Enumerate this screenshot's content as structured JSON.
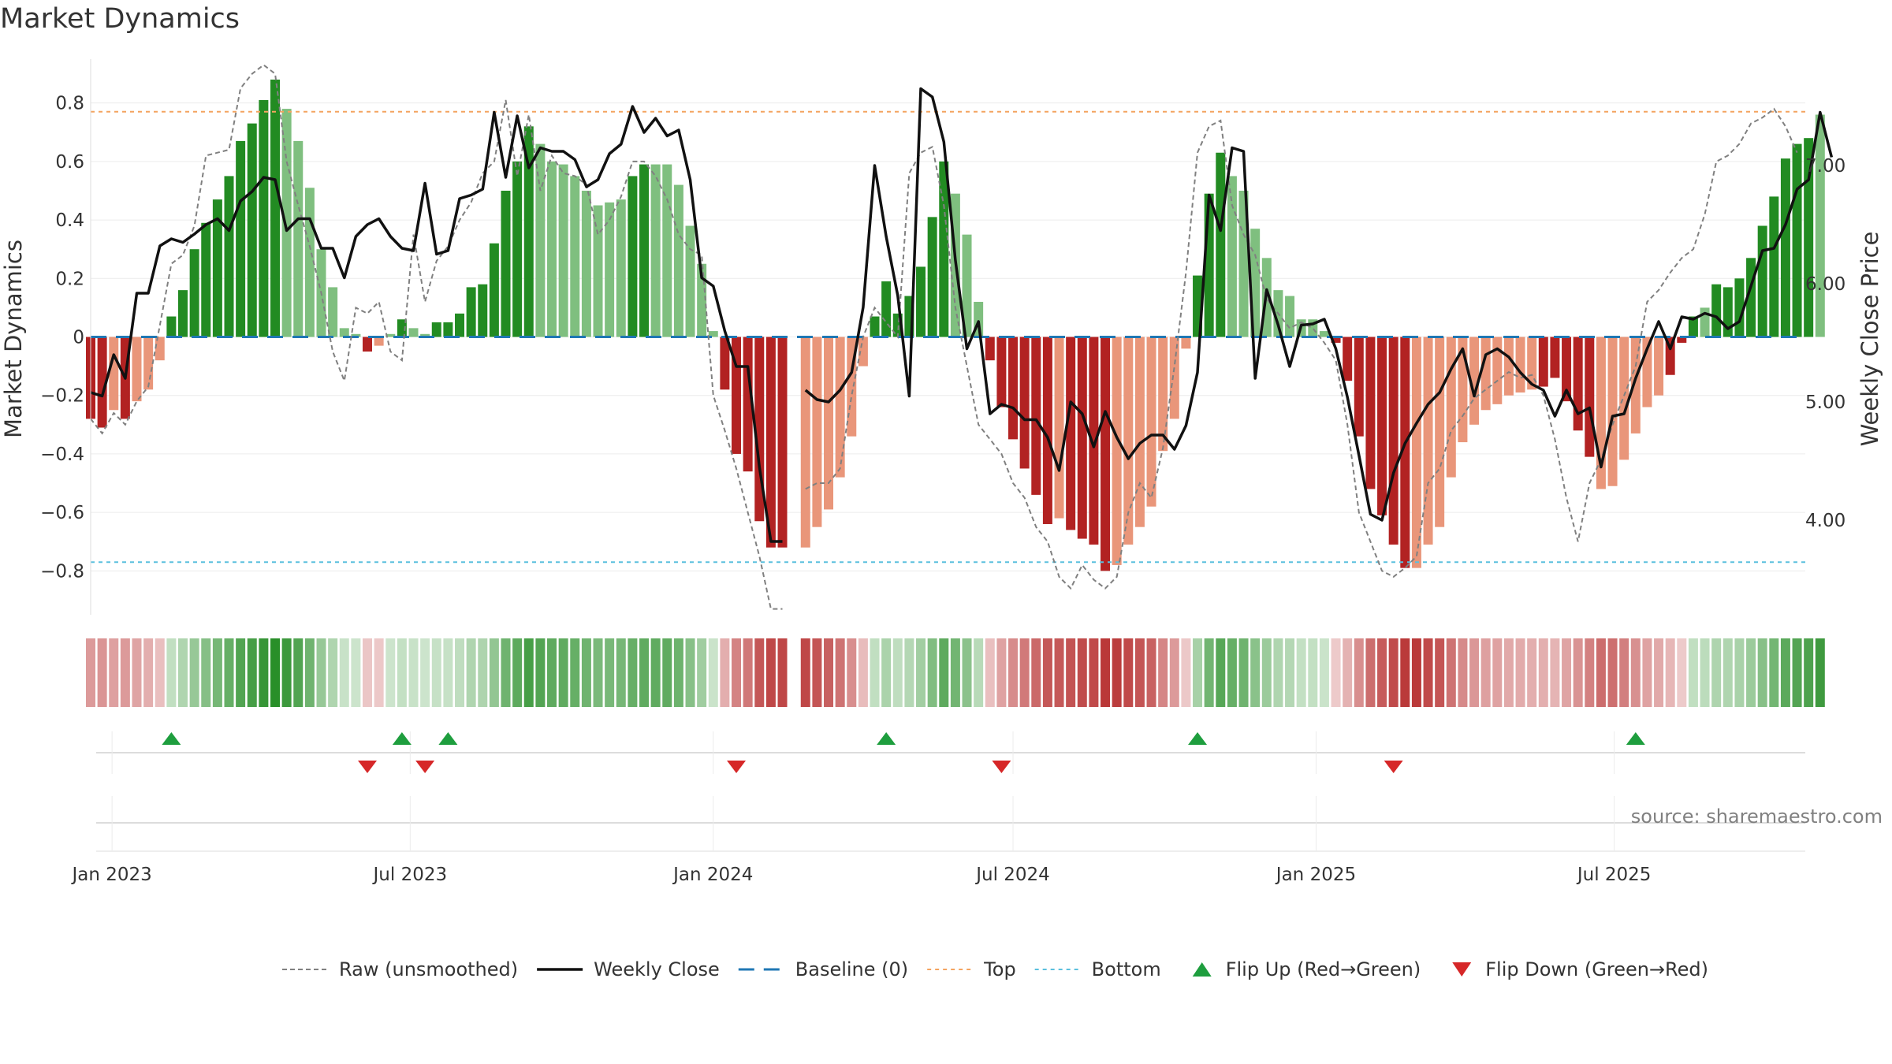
{
  "title": "Market Dynamics",
  "source": "source: sharemaestro.com",
  "colors": {
    "bar_strong_green": "#228B22",
    "bar_light_green": "#7FBF7F",
    "bar_strong_red": "#B22222",
    "bar_light_red": "#E9967A",
    "raw_line": "#808080",
    "close_line": "#111111",
    "baseline": "#1F77B4",
    "top": "#F4A460",
    "bottom": "#5BC0DE",
    "flip_up": "#1E9E3E",
    "flip_down": "#D62728"
  },
  "chart_data": {
    "type": "bar+line",
    "title": "Market Dynamics",
    "ylabel_left": "Market Dynamics",
    "ylabel_right": "Weekly Close Price",
    "ylim_left": [
      -0.95,
      0.95
    ],
    "ylim_right": [
      3.2,
      7.9
    ],
    "yticks_left": [
      0.8,
      0.6,
      0.4,
      0.2,
      0,
      -0.2,
      -0.4,
      -0.6,
      -0.8
    ],
    "yticks_left_labels": [
      "0.8",
      "0.6",
      "0.4",
      "0.2",
      "0",
      "−0.2",
      "−0.4",
      "−0.6",
      "−0.8"
    ],
    "yticks_right": [
      7.0,
      6.0,
      5.0,
      4.0
    ],
    "yticks_right_labels": [
      "7.00",
      "6.00",
      "5.00",
      "4.00"
    ],
    "x_range": [
      "2022-12-19",
      "2025-10-25"
    ],
    "xticks": [
      "2023-01-01",
      "2023-07-01",
      "2024-01-01",
      "2024-07-01",
      "2025-01-01",
      "2025-07-01"
    ],
    "xtick_labels": [
      "Jan 2023",
      "Jul 2023",
      "Jan 2024",
      "Jul 2024",
      "Jan 2025",
      "Jul 2025"
    ],
    "start_date": "2022-12-19",
    "week_days": 7,
    "gap_week_index": 61,
    "top_level": 0.77,
    "bottom_level": -0.77,
    "baseline_level": 0,
    "bar_values": [
      -0.28,
      -0.31,
      -0.25,
      -0.28,
      -0.22,
      -0.18,
      -0.08,
      0.07,
      0.16,
      0.3,
      0.39,
      0.47,
      0.55,
      0.67,
      0.73,
      0.81,
      0.88,
      0.78,
      0.67,
      0.51,
      0.3,
      0.17,
      0.03,
      0.01,
      -0.05,
      -0.03,
      0.01,
      0.06,
      0.03,
      0.01,
      0.05,
      0.05,
      0.08,
      0.17,
      0.18,
      0.32,
      0.5,
      0.6,
      0.72,
      0.66,
      0.6,
      0.59,
      0.55,
      0.5,
      0.45,
      0.46,
      0.47,
      0.55,
      0.59,
      0.59,
      0.59,
      0.52,
      0.38,
      0.25,
      0.02,
      -0.18,
      -0.4,
      -0.46,
      -0.63,
      -0.72,
      -0.72,
      null,
      -0.72,
      -0.65,
      -0.59,
      -0.48,
      -0.34,
      -0.1,
      0.07,
      0.19,
      0.08,
      0.14,
      0.24,
      0.41,
      0.6,
      0.49,
      0.35,
      0.12,
      -0.08,
      -0.24,
      -0.35,
      -0.45,
      -0.54,
      -0.64,
      -0.62,
      -0.66,
      -0.69,
      -0.71,
      -0.8,
      -0.78,
      -0.71,
      -0.65,
      -0.58,
      -0.39,
      -0.28,
      -0.04,
      0.21,
      0.49,
      0.63,
      0.55,
      0.5,
      0.37,
      0.27,
      0.16,
      0.14,
      0.06,
      0.06,
      0.02,
      -0.02,
      -0.15,
      -0.34,
      -0.52,
      -0.61,
      -0.71,
      -0.79,
      -0.79,
      -0.71,
      -0.65,
      -0.48,
      -0.36,
      -0.3,
      -0.25,
      -0.23,
      -0.2,
      -0.19,
      -0.18,
      -0.17,
      -0.14,
      -0.22,
      -0.32,
      -0.41,
      -0.52,
      -0.51,
      -0.42,
      -0.33,
      -0.24,
      -0.2,
      -0.13,
      -0.02,
      0.07,
      0.1,
      0.18,
      0.17,
      0.2,
      0.27,
      0.38,
      0.48,
      0.61,
      0.66,
      0.68,
      0.76
    ],
    "bar_strength": [
      "s",
      "s",
      "l",
      "s",
      "l",
      "l",
      "l",
      "s",
      "s",
      "s",
      "s",
      "s",
      "s",
      "s",
      "s",
      "s",
      "s",
      "l",
      "l",
      "l",
      "l",
      "l",
      "l",
      "l",
      "s",
      "l",
      "l",
      "s",
      "l",
      "l",
      "s",
      "s",
      "s",
      "s",
      "s",
      "s",
      "s",
      "s",
      "s",
      "l",
      "l",
      "l",
      "l",
      "l",
      "l",
      "l",
      "l",
      "s",
      "s",
      "l",
      "l",
      "l",
      "l",
      "l",
      "l",
      "s",
      "s",
      "s",
      "s",
      "s",
      "s",
      null,
      "l",
      "l",
      "l",
      "l",
      "l",
      "l",
      "s",
      "s",
      "s",
      "s",
      "s",
      "s",
      "s",
      "l",
      "l",
      "l",
      "s",
      "s",
      "s",
      "s",
      "s",
      "s",
      "l",
      "s",
      "s",
      "s",
      "s",
      "l",
      "l",
      "l",
      "l",
      "l",
      "l",
      "l",
      "s",
      "s",
      "s",
      "l",
      "l",
      "l",
      "l",
      "l",
      "l",
      "l",
      "l",
      "l",
      "s",
      "s",
      "s",
      "s",
      "s",
      "s",
      "s",
      "l",
      "l",
      "l",
      "l",
      "l",
      "l",
      "l",
      "l",
      "l",
      "l",
      "l",
      "s",
      "s",
      "s",
      "s",
      "s",
      "l",
      "l",
      "l",
      "l",
      "l",
      "l",
      "s",
      "s",
      "s",
      "l",
      "s",
      "s",
      "s",
      "s",
      "s",
      "s",
      "s",
      "s",
      "s"
    ],
    "raw_values": [
      -0.28,
      -0.33,
      -0.26,
      -0.3,
      -0.22,
      -0.17,
      0.04,
      0.25,
      0.28,
      0.38,
      0.62,
      0.63,
      0.64,
      0.85,
      0.9,
      0.93,
      0.9,
      0.6,
      0.45,
      0.31,
      0.15,
      -0.05,
      -0.15,
      0.1,
      0.08,
      0.12,
      -0.05,
      -0.08,
      0.35,
      0.12,
      0.26,
      0.31,
      0.4,
      0.46,
      0.56,
      0.6,
      0.81,
      0.55,
      0.76,
      0.5,
      0.62,
      0.56,
      0.55,
      0.52,
      0.35,
      0.4,
      0.48,
      0.6,
      0.6,
      0.55,
      0.47,
      0.35,
      0.3,
      0.28,
      -0.2,
      -0.32,
      -0.45,
      -0.6,
      -0.75,
      -0.93,
      -0.93,
      null,
      -0.52,
      -0.5,
      -0.5,
      -0.45,
      -0.2,
      0.0,
      0.1,
      0.05,
      0.0,
      0.56,
      0.63,
      0.65,
      0.45,
      0.1,
      -0.1,
      -0.3,
      -0.35,
      -0.4,
      -0.5,
      -0.55,
      -0.65,
      -0.7,
      -0.82,
      -0.86,
      -0.78,
      -0.83,
      -0.86,
      -0.82,
      -0.6,
      -0.5,
      -0.55,
      -0.38,
      -0.1,
      0.22,
      0.63,
      0.72,
      0.74,
      0.45,
      0.35,
      0.28,
      0.13,
      0.08,
      0.03,
      0.05,
      0.03,
      -0.02,
      -0.08,
      -0.3,
      -0.6,
      -0.7,
      -0.8,
      -0.82,
      -0.79,
      -0.75,
      -0.5,
      -0.45,
      -0.32,
      -0.27,
      -0.21,
      -0.18,
      -0.15,
      -0.12,
      -0.14,
      -0.13,
      -0.2,
      -0.35,
      -0.55,
      -0.7,
      -0.5,
      -0.42,
      -0.3,
      -0.2,
      -0.1,
      0.12,
      0.16,
      0.22,
      0.27,
      0.3,
      0.42,
      0.6,
      0.62,
      0.66,
      0.73,
      0.75,
      0.78,
      0.72,
      0.63
    ],
    "close_values": [
      5.08,
      5.05,
      5.4,
      5.2,
      5.92,
      5.92,
      6.32,
      6.38,
      6.35,
      6.42,
      6.5,
      6.55,
      6.45,
      6.7,
      6.78,
      6.9,
      6.88,
      6.45,
      6.55,
      6.55,
      6.3,
      6.3,
      6.05,
      6.4,
      6.5,
      6.55,
      6.4,
      6.3,
      6.28,
      6.85,
      6.25,
      6.28,
      6.72,
      6.75,
      6.8,
      7.45,
      6.9,
      7.42,
      6.98,
      7.15,
      7.12,
      7.12,
      7.05,
      6.82,
      6.88,
      7.1,
      7.18,
      7.5,
      7.28,
      7.4,
      7.25,
      7.3,
      6.88,
      6.05,
      5.98,
      5.6,
      5.3,
      5.3,
      4.45,
      3.82,
      3.82,
      null,
      5.1,
      5.02,
      5.0,
      5.1,
      5.25,
      5.8,
      7.0,
      6.4,
      5.9,
      5.05,
      7.65,
      7.58,
      7.2,
      6.2,
      5.45,
      5.68,
      4.9,
      4.98,
      4.95,
      4.85,
      4.85,
      4.7,
      4.42,
      5.0,
      4.9,
      4.62,
      4.92,
      4.7,
      4.52,
      4.65,
      4.72,
      4.72,
      4.6,
      4.8,
      5.25,
      6.75,
      6.45,
      7.15,
      7.12,
      5.2,
      5.95,
      5.65,
      5.3,
      5.65,
      5.66,
      5.7,
      5.45,
      5.04,
      4.55,
      4.05,
      4.0,
      4.4,
      4.65,
      4.82,
      4.98,
      5.08,
      5.28,
      5.45,
      5.05,
      5.4,
      5.45,
      5.38,
      5.25,
      5.15,
      5.1,
      4.88,
      5.1,
      4.9,
      4.95,
      4.45,
      4.88,
      4.9,
      5.2,
      5.45,
      5.68,
      5.45,
      5.72,
      5.7,
      5.75,
      5.72,
      5.62,
      5.68,
      5.98,
      6.28,
      6.3,
      6.5,
      6.8,
      6.88,
      7.45,
      7.07
    ],
    "flip_up_weeks": [
      7,
      27,
      31,
      69,
      96,
      134
    ],
    "flip_down_weeks": [
      24,
      29,
      56,
      79,
      113
    ],
    "legend": [
      "Raw (unsmoothed)",
      "Weekly Close",
      "Baseline (0)",
      "Top",
      "Bottom",
      "Flip Up (Red→Green)",
      "Flip Down (Green→Red)"
    ]
  }
}
